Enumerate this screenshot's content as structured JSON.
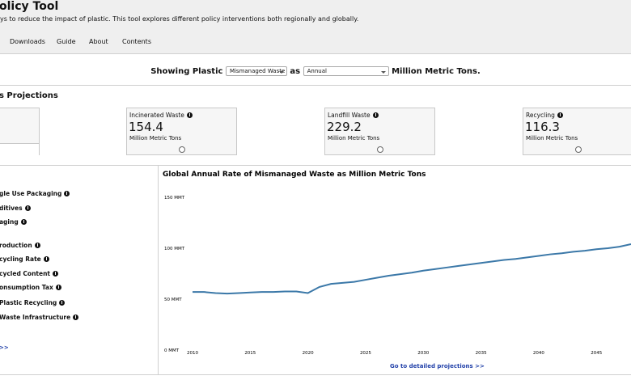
{
  "header": {
    "title": "olicy Tool",
    "description": "ys to reduce the impact of plastic. This tool explores different policy interventions both regionally and globally."
  },
  "nav": [
    "Downloads",
    "Guide",
    "About",
    "Contents"
  ],
  "selector": {
    "prefix": "Showing Plastic",
    "metric": "Mismanaged Waste",
    "joiner": "as",
    "mode": "Annual",
    "suffix": "Million Metric Tons."
  },
  "projections": {
    "heading": "s Projections",
    "cards": [
      {
        "title": "Incinerated Waste",
        "value": 154.4,
        "unit": "Million Metric Tons"
      },
      {
        "title": "Landfill Waste",
        "value": 229.2,
        "unit": "Million Metric Tons"
      },
      {
        "title": "Recycling",
        "value": 116.3,
        "unit": "Million Metric Tons"
      }
    ]
  },
  "policies": [
    "gle Use Packaging",
    "ditives",
    "aging",
    "roduction",
    "cycling Rate",
    "cycled Content",
    "onsumption Tax",
    "Plastic Recycling",
    "Waste Infrastructure"
  ],
  "policies_link": ">>",
  "chart_data": {
    "type": "line",
    "title": "Global Annual Rate of Mismanaged Waste as Million Metric Tons",
    "x": [
      2010,
      2011,
      2012,
      2013,
      2014,
      2015,
      2016,
      2017,
      2018,
      2019,
      2020,
      2021,
      2022,
      2023,
      2024,
      2025,
      2026,
      2027,
      2028,
      2029,
      2030,
      2031,
      2032,
      2033,
      2034,
      2035,
      2036,
      2037,
      2038,
      2039,
      2040,
      2041,
      2042,
      2043,
      2044,
      2045,
      2046,
      2047,
      2048
    ],
    "values": [
      57,
      57,
      56,
      55.5,
      56,
      56.5,
      57,
      57,
      57.5,
      57.5,
      56,
      62,
      65,
      66,
      67,
      69,
      71,
      73,
      74.5,
      76,
      78,
      79.5,
      81,
      82.5,
      84,
      85.5,
      87,
      88.5,
      89.5,
      91,
      92.5,
      94,
      95,
      96.5,
      97.5,
      99,
      100,
      101.5,
      104
    ],
    "color": "#3b78a8",
    "xlim": [
      2010,
      2048
    ],
    "xticks": [
      2010,
      2015,
      2020,
      2025,
      2030,
      2035,
      2040,
      2045
    ],
    "ylim": [
      0,
      150
    ],
    "yticks": [
      {
        "value": 0,
        "label": "0 MMT"
      },
      {
        "value": 50,
        "label": "50 MMT"
      },
      {
        "value": 100,
        "label": "100 MMT"
      },
      {
        "value": 150,
        "label": "150 MMT"
      }
    ],
    "grid": false
  },
  "chart_link": "Go to detailed projections >>"
}
